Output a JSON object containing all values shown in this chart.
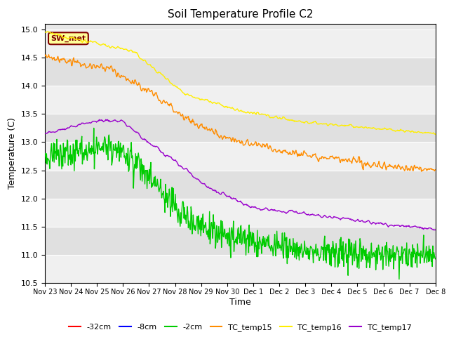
{
  "title": "Soil Temperature Profile C2",
  "xlabel": "Time",
  "ylabel": "Temperature (C)",
  "ylim": [
    10.5,
    15.1
  ],
  "xlim": [
    0,
    360
  ],
  "annotation_text": "SW_met",
  "annotation_bg": "#ffff99",
  "annotation_border": "#800000",
  "tick_labels": [
    "Nov 23",
    "Nov 24",
    "Nov 25",
    "Nov 26",
    "Nov 27",
    "Nov 28",
    "Nov 29",
    "Nov 30",
    "Dec 1",
    "Dec 2",
    "Dec 3",
    "Dec 4",
    "Dec 5",
    "Dec 6",
    "Dec 7",
    "Dec 8"
  ],
  "legend_entries": [
    "-32cm",
    "-8cm",
    "-2cm",
    "TC_temp15",
    "TC_temp16",
    "TC_temp17"
  ],
  "legend_colors": [
    "#ff0000",
    "#0000ff",
    "#00cc00",
    "#ff8c00",
    "#ffee00",
    "#9900cc"
  ],
  "series_colors": {
    "m2cm": "#00cc00",
    "tc15": "#ff8c00",
    "tc16": "#ffee00",
    "tc17": "#9900cc"
  },
  "plot_bg": "#e8e8e8",
  "stripe_light": "#f0f0f0",
  "stripe_dark": "#e0e0e0"
}
